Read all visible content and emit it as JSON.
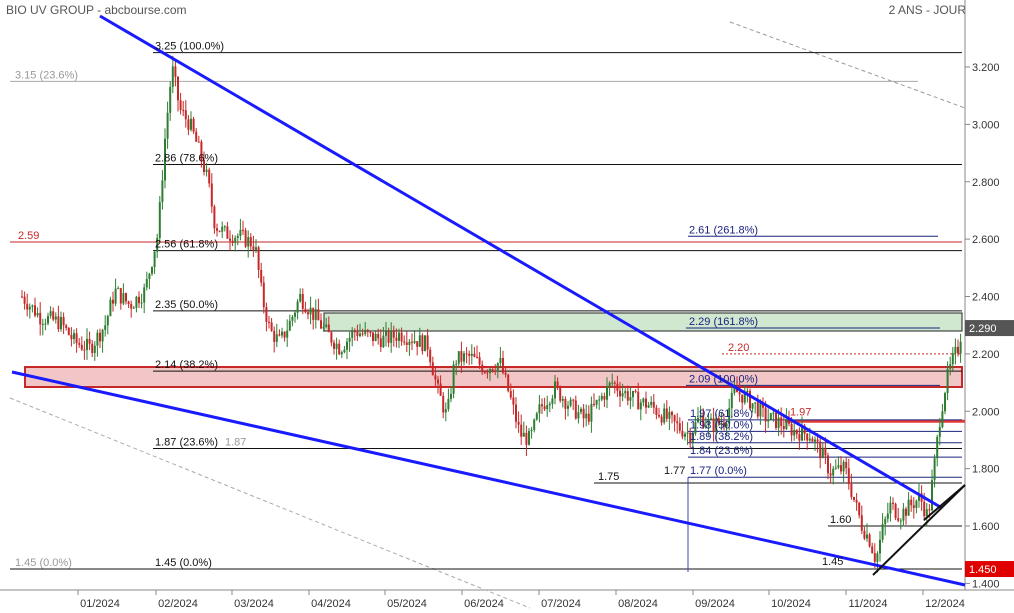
{
  "header": {
    "title": "BIO UV GROUP - abcbourse.com",
    "period": "2 ANS - JOUR"
  },
  "chart_data": {
    "type": "candlestick",
    "title": "BIO UV GROUP",
    "period": "2 ANS - JOUR",
    "x_ticks": [
      "01/2024",
      "02/2024",
      "03/2024",
      "04/2024",
      "05/2024",
      "06/2024",
      "07/2024",
      "08/2024",
      "09/2024",
      "10/2024",
      "11/2024",
      "12/2024"
    ],
    "y_ticks": [
      "3.200",
      "3.000",
      "2.800",
      "2.600",
      "2.400",
      "2.200",
      "2.000",
      "1.800",
      "1.600",
      "1.400"
    ],
    "ylim": [
      1.39,
      3.4
    ],
    "last_price": "2.290",
    "low_marker": "1.450",
    "colors": {
      "up": "#2e7d32",
      "down": "#c62828",
      "trendline": "#1a1aff",
      "resistance": "#e53935",
      "zone_green": "#cfe8cf",
      "zone_red": "#f2c6c6"
    },
    "fib_retracement": [
      {
        "price": 3.25,
        "label": "3.25  (100.0%)"
      },
      {
        "price": 2.86,
        "label": "2.86  (78.6%)"
      },
      {
        "price": 2.56,
        "label": "2.56  (61.8%)"
      },
      {
        "price": 2.35,
        "label": "2.35  (50.0%)"
      },
      {
        "price": 2.14,
        "label": "2.14  (38.2%)"
      },
      {
        "price": 1.87,
        "label": "1.87  (23.6%)"
      },
      {
        "price": 1.45,
        "label": "1.45  (0.0%)"
      }
    ],
    "fib_short": [
      {
        "price": 1.97,
        "label": "1.97  (61.8%)"
      },
      {
        "price": 1.93,
        "label": "1.93  (50.0%)"
      },
      {
        "price": 1.89,
        "label": "1.89  (38.2%)"
      },
      {
        "price": 1.84,
        "label": "1.84  (23.6%)"
      },
      {
        "price": 1.77,
        "label": "1.77  (0.0%)"
      }
    ],
    "fib_extension": [
      {
        "price": 2.61,
        "label": "2.61  (261.8%)"
      },
      {
        "price": 2.29,
        "label": "2.29  (161.8%)"
      },
      {
        "price": 2.09,
        "label": "2.09  (100.0%)"
      }
    ],
    "gray_labels": [
      {
        "price": 3.15,
        "label": "3.15  (23.6%)"
      },
      {
        "price": 1.45,
        "label": "1.45  (0.0%)"
      },
      {
        "price": 1.87,
        "label": "1.87"
      }
    ],
    "levels": [
      {
        "price": 2.59,
        "label": "2.59"
      },
      {
        "price": 2.2,
        "label": "2.20"
      },
      {
        "price": 1.97,
        "label": "1.97"
      },
      {
        "price": 1.75,
        "label": "1.75"
      },
      {
        "price": 1.77,
        "label": "1.77"
      },
      {
        "price": 1.6,
        "label": "1.60"
      },
      {
        "price": 1.45,
        "label": "1.45"
      }
    ]
  }
}
